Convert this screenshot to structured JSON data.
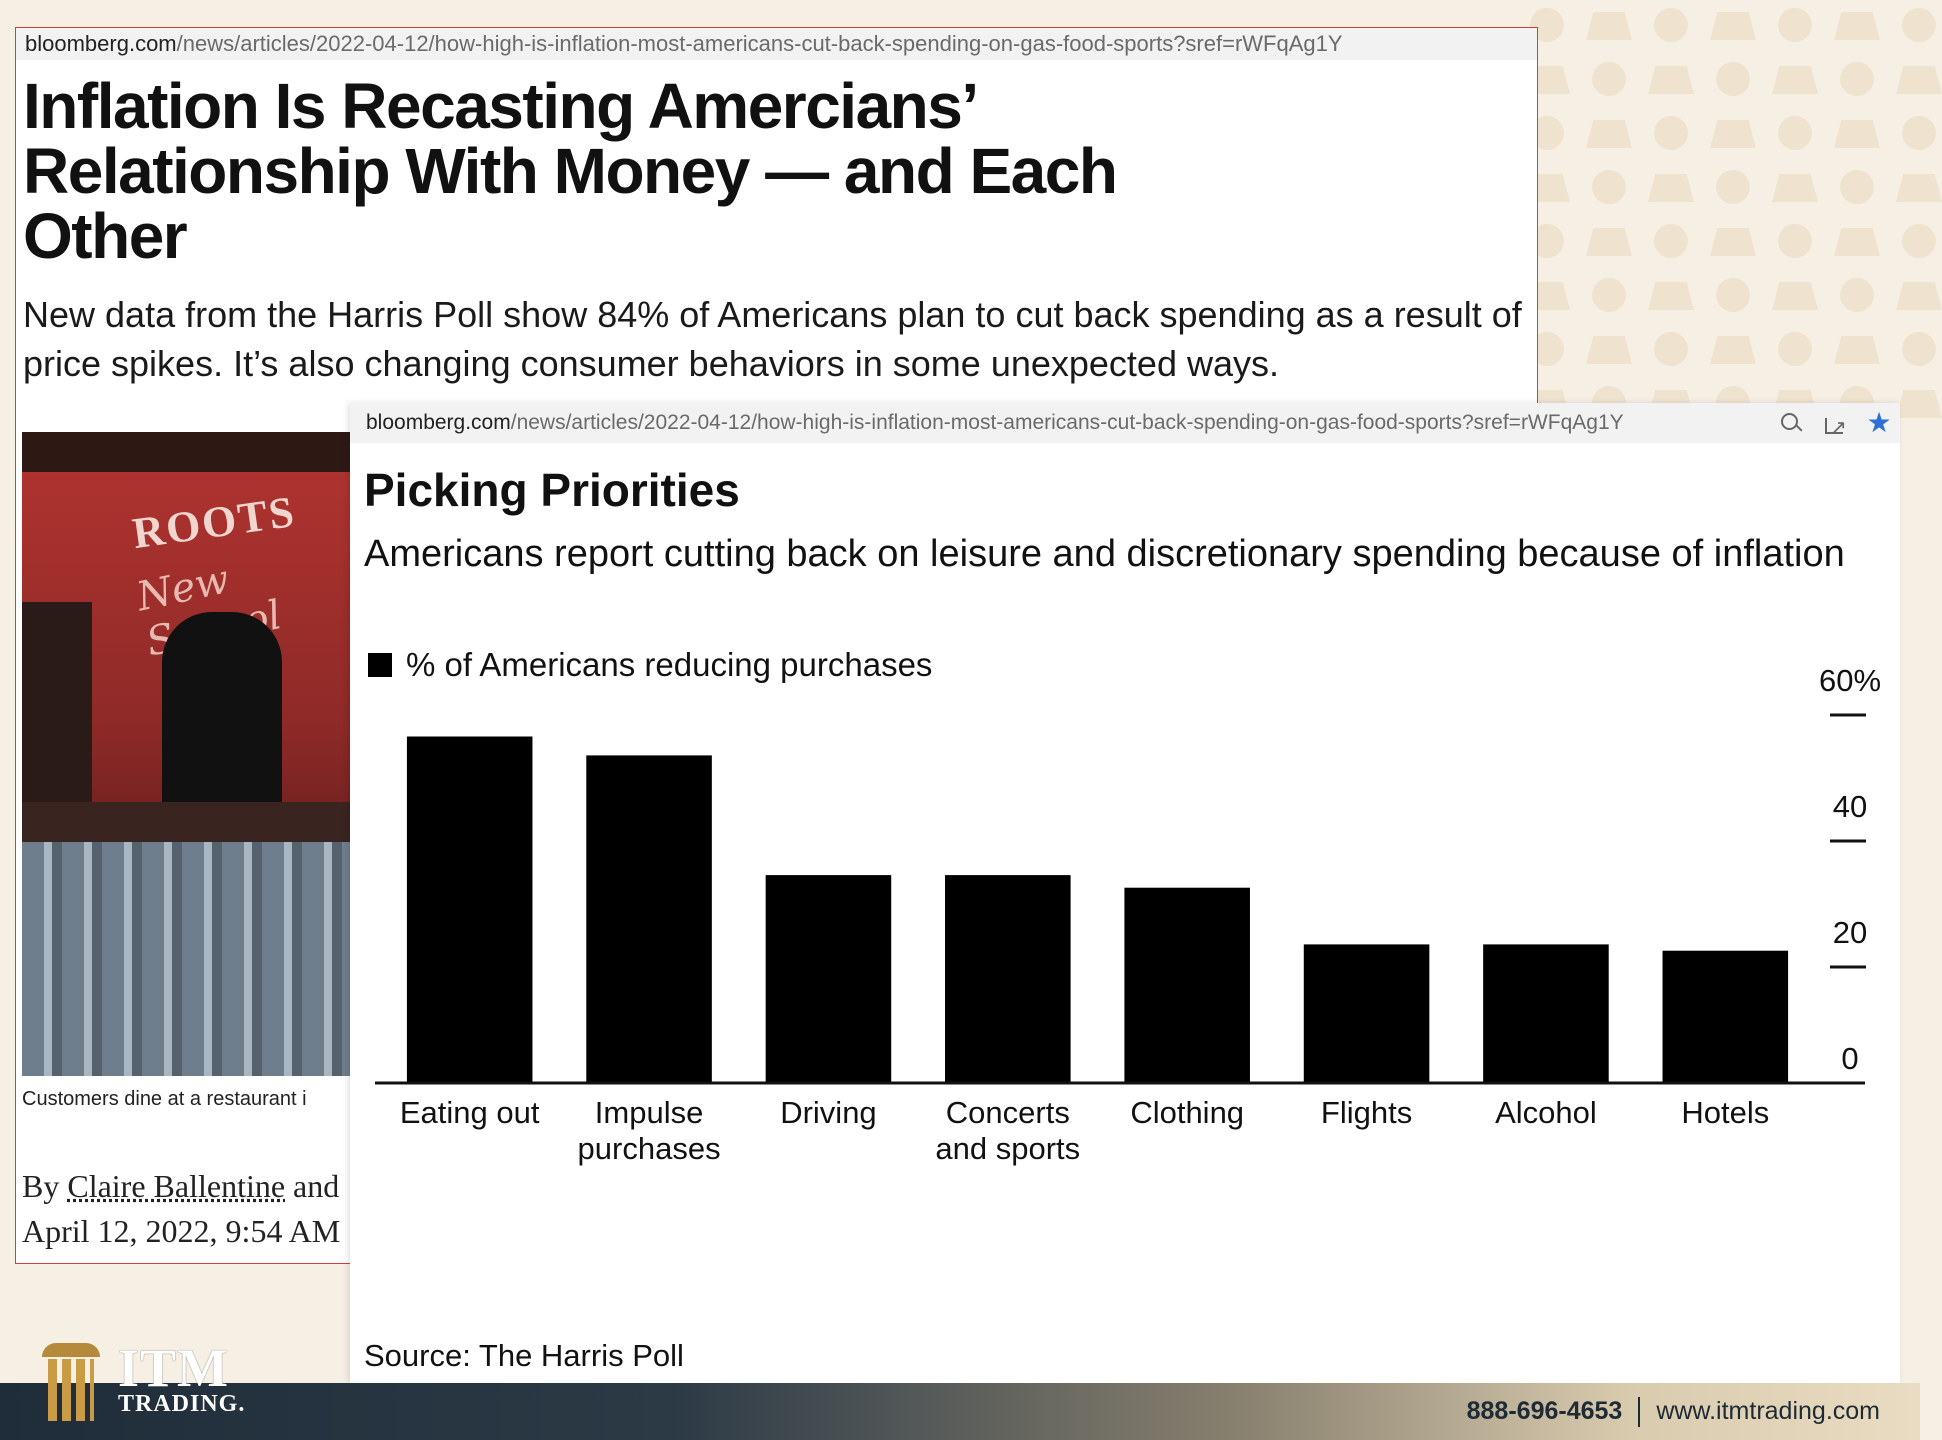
{
  "article": {
    "url_host": "bloomberg.com",
    "url_path": "/news/articles/2022-04-12/how-high-is-inflation-most-americans-cut-back-spending-on-gas-food-sports?sref=rWFqAg1Y",
    "headline": "Inflation Is Recasting Amercians’ Relationship With Money — and Each Other",
    "dek": "New data from the Harris Poll show 84% of Americans plan to cut back spending as a result of price spikes. It’s also changing consumer behaviors in some unexpected ways.",
    "caption": "Customers dine at a restaurant i",
    "byline_prefix": "By ",
    "byline_author": "Claire Ballentine",
    "byline_suffix": " and",
    "date": "April 12, 2022, 9:54 AM"
  },
  "chart_card": {
    "url_host": "bloomberg.com",
    "url_path": "/news/articles/2022-04-12/how-high-is-inflation-most-americans-cut-back-spending-on-gas-food-sports?sref=rWFqAg1Y",
    "icons": [
      "zoom-icon",
      "share-icon",
      "star-icon"
    ],
    "star_color": "#2f6fd8"
  },
  "chart_data": {
    "type": "bar",
    "title": "Picking Priorities",
    "subtitle": "Americans report cutting back on leisure and discretionary spending because of inflation",
    "categories": [
      "Eating out",
      "Impulse purchases",
      "Driving",
      "Concerts and sports",
      "Clothing",
      "Flights",
      "Alcohol",
      "Hotels"
    ],
    "category_lines": [
      [
        "Eating out"
      ],
      [
        "Impulse",
        "purchases"
      ],
      [
        "Driving"
      ],
      [
        "Concerts",
        "and sports"
      ],
      [
        "Clothing"
      ],
      [
        "Flights"
      ],
      [
        "Alcohol"
      ],
      [
        "Hotels"
      ]
    ],
    "series": [
      {
        "name": "% of Americans reducing purchases",
        "values": [
          55,
          52,
          33,
          33,
          31,
          22,
          22,
          21
        ]
      }
    ],
    "yticks": [
      "0",
      "20",
      "40",
      "60%"
    ],
    "ytick_values": [
      0,
      20,
      40,
      60
    ],
    "ylim": [
      0,
      60
    ],
    "axis_side": "right",
    "bar_color": "#000000",
    "grid": false,
    "legend_position": "top-left",
    "source": "Source: The Harris Poll"
  },
  "footer": {
    "logo_big": "ITM",
    "logo_small": "TRADING.",
    "phone": "888-696-4653",
    "website": "www.itmtrading.com"
  }
}
